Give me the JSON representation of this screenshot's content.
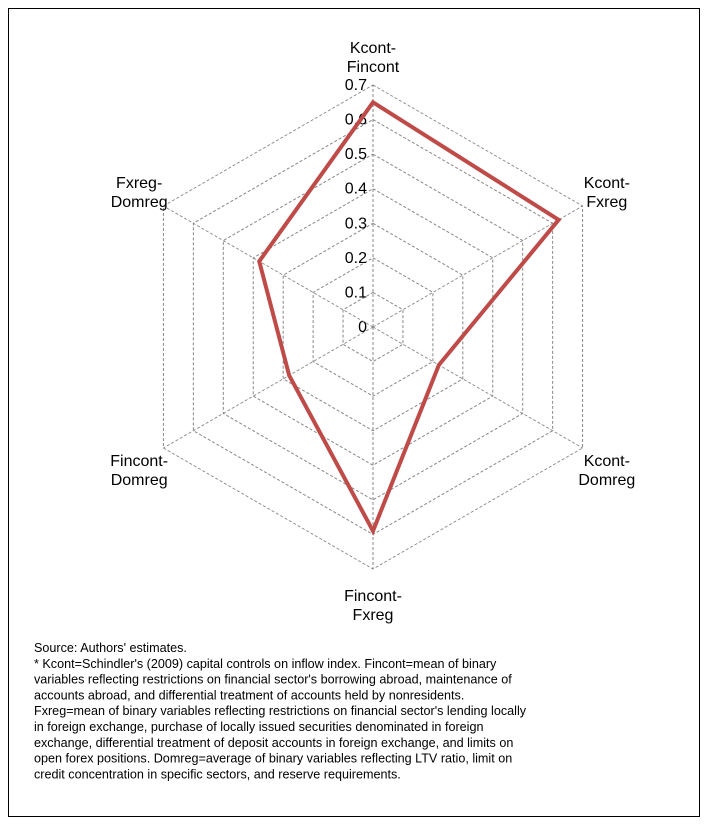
{
  "chart_data": {
    "type": "radar",
    "categories": [
      [
        "Kcont-",
        "Fincont"
      ],
      [
        "Kcont-",
        "Fxreg"
      ],
      [
        "Kcont-",
        "Domreg"
      ],
      [
        "Fincont-",
        "Fxreg"
      ],
      [
        "Fincont-",
        "Domreg"
      ],
      [
        "Fxreg-",
        "Domreg"
      ]
    ],
    "values": [
      0.65,
      0.62,
      0.22,
      0.59,
      0.28,
      0.38
    ],
    "color": "#be4b48",
    "ylim": [
      0,
      0.7
    ],
    "yticks": [
      0,
      0.1,
      0.2,
      0.3,
      0.4,
      0.5,
      0.6,
      0.7
    ],
    "grid": true,
    "notes": [
      "Source:  Authors' estimates.",
      "* Kcont=Schindler's (2009) capital controls on inflow index. Fincont=mean of binary",
      "variables reflecting restrictions on financial sector's borrowing abroad, maintenance of",
      "accounts abroad, and differential treatment of accounts held by nonresidents.",
      "Fxreg=mean of binary variables reflecting restrictions on financial sector's lending locally",
      "in foreign exchange, purchase of locally issued securities denominated in foreign",
      "exchange, differential treatment of deposit accounts in foreign exchange, and limits on",
      "open forex positions. Domreg=average of binary variables reflecting LTV ratio, limit on",
      "credit concentration in specific sectors, and reserve requirements."
    ]
  }
}
